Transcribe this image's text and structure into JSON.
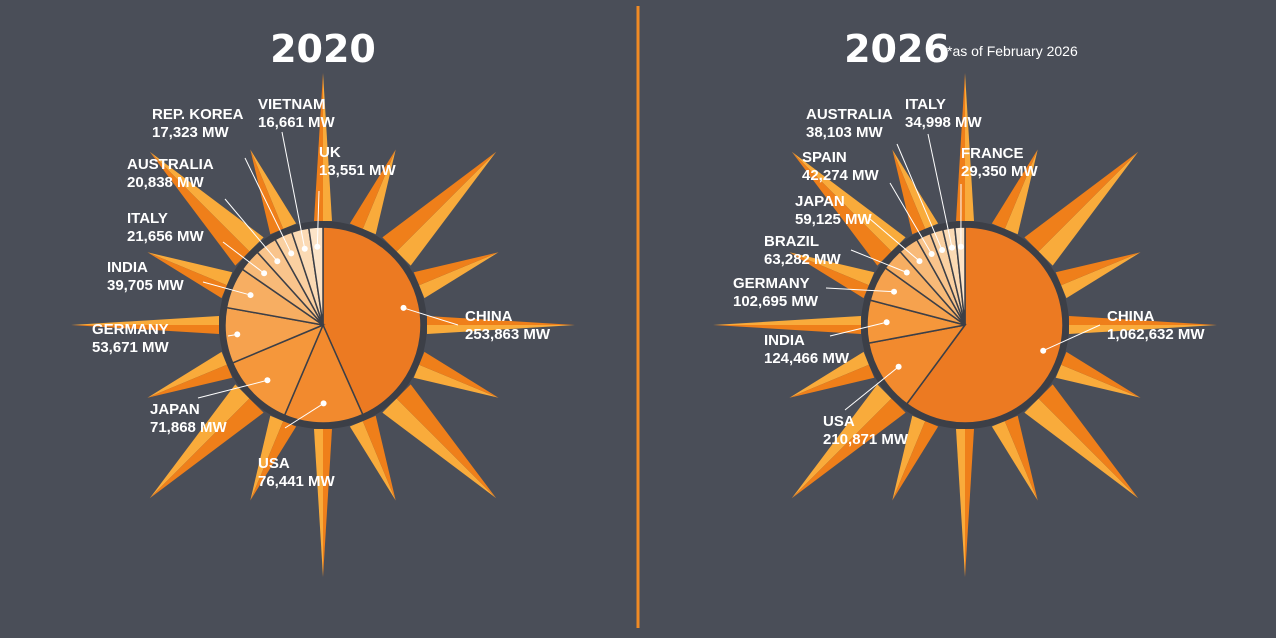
{
  "colors": {
    "background": "#4a4e58",
    "divider": "#f08a24",
    "ray_light": "#f9ab3b",
    "ray_dark": "#ef7f1a",
    "pie_ring": "#3c3f47",
    "leader": "#ffffff",
    "text": "#ffffff",
    "slice_palette": [
      "#ec7a22",
      "#f28a2e",
      "#f5973b",
      "#f6a24e",
      "#f7ae62",
      "#f8ba78",
      "#f9c48c",
      "#fad0a1",
      "#fbdab4",
      "#fce4c8"
    ]
  },
  "chart_data": [
    {
      "type": "pie",
      "title": "2020",
      "note": "",
      "unit": "MW",
      "slices": [
        {
          "name": "CHINA",
          "value": 253863,
          "label": "253,863 MW"
        },
        {
          "name": "USA",
          "value": 76441,
          "label": "76,441 MW"
        },
        {
          "name": "JAPAN",
          "value": 71868,
          "label": "71,868 MW"
        },
        {
          "name": "GERMANY",
          "value": 53671,
          "label": "53,671 MW"
        },
        {
          "name": "INDIA",
          "value": 39705,
          "label": "39,705 MW"
        },
        {
          "name": "ITALY",
          "value": 21656,
          "label": "21,656 MW"
        },
        {
          "name": "AUSTRALIA",
          "value": 20838,
          "label": "20,838 MW"
        },
        {
          "name": "REP. KOREA",
          "value": 17323,
          "label": "17,323 MW"
        },
        {
          "name": "VIETNAM",
          "value": 16661,
          "label": "16,661 MW"
        },
        {
          "name": "UK",
          "value": 13551,
          "label": "13,551 MW"
        }
      ]
    },
    {
      "type": "pie",
      "title": "2026",
      "note": "*as of February 2026",
      "unit": "MW",
      "slices": [
        {
          "name": "CHINA",
          "value": 1062632,
          "label": "1,062,632 MW"
        },
        {
          "name": "USA",
          "value": 210871,
          "label": "210,871 MW"
        },
        {
          "name": "INDIA",
          "value": 124466,
          "label": "124,466 MW"
        },
        {
          "name": "GERMANY",
          "value": 102695,
          "label": "102,695 MW"
        },
        {
          "name": "BRAZIL",
          "value": 63282,
          "label": "63,282 MW"
        },
        {
          "name": "JAPAN",
          "value": 59125,
          "label": "59,125 MW"
        },
        {
          "name": "SPAIN",
          "value": 42274,
          "label": "42,274 MW"
        },
        {
          "name": "AUSTRALIA",
          "value": 38103,
          "label": "38,103 MW"
        },
        {
          "name": "ITALY",
          "value": 34998,
          "label": "34,998 MW"
        },
        {
          "name": "FRANCE",
          "value": 29350,
          "label": "29,350 MW"
        }
      ]
    }
  ]
}
